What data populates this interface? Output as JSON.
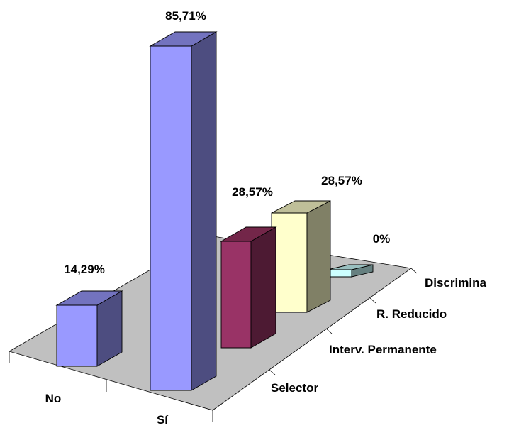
{
  "chart_data": {
    "type": "bar",
    "subtype": "3d-column",
    "x_categories": [
      "No",
      "Sí"
    ],
    "depth_categories": [
      "Selector",
      "Interv. Permanente",
      "R. Reducido",
      "Discrimina"
    ],
    "bars": [
      {
        "x": "No",
        "depth": "Selector",
        "value": 14.29,
        "label": "14,29%"
      },
      {
        "x": "Sí",
        "depth": "Selector",
        "value": 85.71,
        "label": "85,71%"
      },
      {
        "x": "Sí",
        "depth": "Interv. Permanente",
        "value": 28.57,
        "label": "28,57%"
      },
      {
        "x": "Sí",
        "depth": "R. Reducido",
        "value": 28.57,
        "label": "28,57%"
      },
      {
        "x": "Sí",
        "depth": "Discrimina",
        "value": 0,
        "label": "0%"
      }
    ],
    "colors": {
      "floor": "#c0c0c0",
      "bar_fronts": [
        "#9999ff",
        "#9999ff",
        "#993366",
        "#ffffcc",
        "#ccffff"
      ],
      "bar_sides": [
        "#4d4d80",
        "#4d4d80",
        "#4d1a33",
        "#808066",
        "#668080"
      ],
      "bar_tops": [
        "#7373bf",
        "#7373bf",
        "#732649",
        "#bfbf99",
        "#99bfbf"
      ]
    },
    "grid": false,
    "legend": "none"
  }
}
